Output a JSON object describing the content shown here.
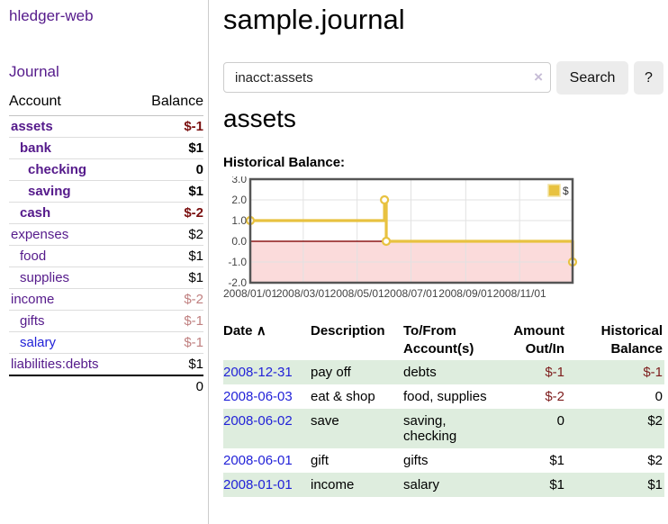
{
  "app": {
    "brand": "hledger-web"
  },
  "sidebar": {
    "journal_label": "Journal",
    "headers": {
      "account": "Account",
      "balance": "Balance"
    },
    "accounts": [
      {
        "name": "assets",
        "balance": "$-1",
        "level": 1,
        "bold": true,
        "neg": "strong",
        "link": "visited"
      },
      {
        "name": "bank",
        "balance": "$1",
        "level": 2,
        "bold": true,
        "neg": null,
        "link": "visited"
      },
      {
        "name": "checking",
        "balance": "0",
        "level": 3,
        "bold": true,
        "neg": null,
        "link": "visited"
      },
      {
        "name": "saving",
        "balance": "$1",
        "level": 3,
        "bold": true,
        "neg": null,
        "link": "visited"
      },
      {
        "name": "cash",
        "balance": "$-2",
        "level": 2,
        "bold": true,
        "neg": "strong",
        "link": "visited"
      },
      {
        "name": "expenses",
        "balance": "$2",
        "level": 1,
        "bold": false,
        "neg": null,
        "link": "visited"
      },
      {
        "name": "food",
        "balance": "$1",
        "level": 2,
        "bold": false,
        "neg": null,
        "link": "visited"
      },
      {
        "name": "supplies",
        "balance": "$1",
        "level": 2,
        "bold": false,
        "neg": null,
        "link": "visited"
      },
      {
        "name": "income",
        "balance": "$-2",
        "level": 1,
        "bold": false,
        "neg": "soft",
        "link": "visited"
      },
      {
        "name": "gifts",
        "balance": "$-1",
        "level": 2,
        "bold": false,
        "neg": "soft",
        "link": "visited"
      },
      {
        "name": "salary",
        "balance": "$-1",
        "level": 2,
        "bold": false,
        "neg": "soft",
        "link": "unvisited"
      },
      {
        "name": "liabilities:debts",
        "balance": "$1",
        "level": 1,
        "bold": false,
        "neg": null,
        "link": "visited"
      }
    ],
    "total": "0"
  },
  "main": {
    "title": "sample.journal",
    "search": {
      "value": "inacct:assets",
      "clear_icon": "×",
      "button_label": "Search",
      "help_label": "?"
    },
    "account_heading": "assets",
    "chart_heading": "Historical Balance:"
  },
  "chart_data": {
    "type": "line",
    "style": "step",
    "title": "Historical Balance",
    "series": [
      {
        "name": "$",
        "color": "#e8c240",
        "points": [
          {
            "date": "2008-01-01",
            "day": 0,
            "value": 1
          },
          {
            "date": "2008-06-01",
            "day": 152,
            "value": 2
          },
          {
            "date": "2008-06-03",
            "day": 154,
            "value": 0
          },
          {
            "date": "2008-12-31",
            "day": 365,
            "value": -1
          }
        ]
      }
    ],
    "ylim": [
      -2,
      3
    ],
    "xlim_days": [
      0,
      365
    ],
    "yticks": [
      {
        "v": 3,
        "label": "3.0"
      },
      {
        "v": 2,
        "label": "2.0"
      },
      {
        "v": 1,
        "label": "1.0"
      },
      {
        "v": 0,
        "label": "0.0"
      },
      {
        "v": -1,
        "label": "-1.0"
      },
      {
        "v": -2,
        "label": "-2.0"
      }
    ],
    "xticks": [
      {
        "day": 0,
        "label": "2008/01/01"
      },
      {
        "day": 60,
        "label": "2008/03/01"
      },
      {
        "day": 121,
        "label": "2008/05/01"
      },
      {
        "day": 182,
        "label": "2008/07/01"
      },
      {
        "day": 244,
        "label": "2008/09/01"
      },
      {
        "day": 305,
        "label": "2008/11/01"
      }
    ],
    "legend": {
      "label": "$",
      "position": "top-right"
    },
    "grid": true,
    "colors": {
      "negative_region_fill": "#fbdbdb",
      "zero_line": "#8c1717",
      "grid_line": "#e2e2e2",
      "plot_border": "#555555",
      "tick_text": "#444444",
      "marker_fill": "#ffffff"
    }
  },
  "register": {
    "headers": [
      "Date",
      "Description",
      "To/From Account(s)",
      "Amount Out/In",
      "Historical Balance"
    ],
    "sort_icon": "∧",
    "rows": [
      {
        "date": "2008-12-31",
        "description": "pay off",
        "accounts": "debts",
        "amount": "$-1",
        "balance": "$-1"
      },
      {
        "date": "2008-06-03",
        "description": "eat & shop",
        "accounts": "food, supplies",
        "amount": "$-2",
        "balance": "0"
      },
      {
        "date": "2008-06-02",
        "description": "save",
        "accounts": "saving, checking",
        "amount": "0",
        "balance": "$2"
      },
      {
        "date": "2008-06-01",
        "description": "gift",
        "accounts": "gifts",
        "amount": "$1",
        "balance": "$2"
      },
      {
        "date": "2008-01-01",
        "description": "income",
        "accounts": "salary",
        "amount": "$1",
        "balance": "$1"
      }
    ]
  }
}
